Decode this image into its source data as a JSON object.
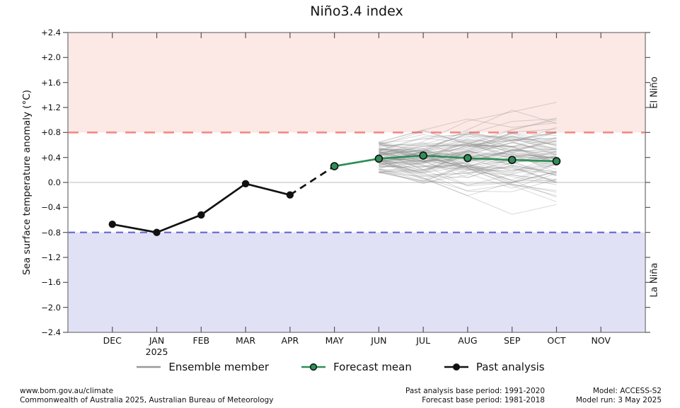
{
  "chart_data": {
    "type": "line",
    "title": "Niño3.4 index",
    "xlabel": "",
    "ylabel": "Sea surface temperature anomaly (°C)",
    "ylim": [
      -2.4,
      2.4
    ],
    "grid": "zero-line-only",
    "legend_position": "bottom-center",
    "x_categories": [
      "DEC",
      "JAN",
      "FEB",
      "MAR",
      "APR",
      "MAY",
      "JUN",
      "JUL",
      "AUG",
      "SEP",
      "OCT",
      "NOV"
    ],
    "x_year_label": {
      "text": "2025",
      "month": "JAN"
    },
    "y_ticks": [
      {
        "label": "+2.4",
        "value": 2.4
      },
      {
        "label": "+2.0",
        "value": 2.0
      },
      {
        "label": "+1.6",
        "value": 1.6
      },
      {
        "label": "+1.2",
        "value": 1.2
      },
      {
        "label": "+0.8",
        "value": 0.8
      },
      {
        "label": "+0.4",
        "value": 0.4
      },
      {
        "label": "0.0",
        "value": 0.0
      },
      {
        "label": "−0.4",
        "value": -0.4
      },
      {
        "label": "−0.8",
        "value": -0.8
      },
      {
        "label": "−1.2",
        "value": -1.2
      },
      {
        "label": "−1.6",
        "value": -1.6
      },
      {
        "label": "−2.0",
        "value": -2.0
      },
      {
        "label": "−2.4",
        "value": -2.4
      }
    ],
    "regions": {
      "el_nino": {
        "label": "El Niño",
        "threshold": 0.8,
        "band_fill": "#fce8e5",
        "line_color": "#f28b84",
        "label_color": "#ee6a5f"
      },
      "la_nina": {
        "label": "La Niña",
        "threshold": -0.8,
        "band_fill": "#e1e1f6",
        "line_color": "#6565cf",
        "label_color": "#6b6bd4"
      }
    },
    "series": [
      {
        "name": "Past analysis",
        "style": "solid",
        "marker": "filled-circle",
        "color": "#111111",
        "x": [
          "DEC",
          "JAN",
          "FEB",
          "MAR",
          "APR"
        ],
        "values": [
          -0.67,
          -0.8,
          -0.52,
          -0.02,
          -0.2
        ]
      },
      {
        "name": "Past analysis to forecast transition",
        "style": "dashed",
        "marker": "none",
        "color": "#111111",
        "x": [
          "APR",
          "MAY"
        ],
        "values": [
          -0.2,
          0.26
        ]
      },
      {
        "name": "Forecast mean",
        "style": "solid",
        "marker": "circle-outlined",
        "color": "#2e8f58",
        "x": [
          "MAY",
          "JUN",
          "JUL",
          "AUG",
          "SEP",
          "OCT"
        ],
        "values": [
          0.26,
          0.38,
          0.43,
          0.39,
          0.36,
          0.34
        ]
      },
      {
        "name": "Ensemble member",
        "style": "solid-cloud",
        "marker": "none",
        "color": "rgba(128,128,128,0.30)",
        "x": [
          "JUN",
          "JUL",
          "AUG",
          "SEP",
          "OCT"
        ],
        "generated": {
          "count": 95,
          "seed": 7,
          "start_mean": 0.4,
          "start_spread": 0.5,
          "step_spread": [
            0.27,
            0.31,
            0.3,
            0.27
          ],
          "drift_spread": 0.12,
          "clamp": [
            -0.66,
            1.62
          ]
        },
        "value_range_at_start": [
          0.05,
          0.75
        ],
        "value_range_at_end": [
          -0.62,
          1.62
        ]
      }
    ],
    "zero_line_color": "#c9c9c9",
    "axis_color": "#8a8a8a",
    "tick_color": "#555555"
  },
  "legend": {
    "items": [
      {
        "label": "Ensemble member",
        "marker": "line",
        "color": "#999999"
      },
      {
        "label": "Forecast mean",
        "marker": "line-circle",
        "color": "#2e8f58"
      },
      {
        "label": "Past analysis",
        "marker": "line-dot",
        "color": "#111111"
      }
    ]
  },
  "footer": {
    "left": {
      "line1": "www.bom.gov.au/climate",
      "line2": "Commonwealth of Australia 2025, Australian Bureau of Meteorology"
    },
    "middle": {
      "line1": "Past analysis base period: 1991-2020",
      "line2": "Forecast base period: 1981-2018"
    },
    "right": {
      "line1": "Model: ACCESS-S2",
      "line2": "Model run: 3 May 2025"
    }
  }
}
